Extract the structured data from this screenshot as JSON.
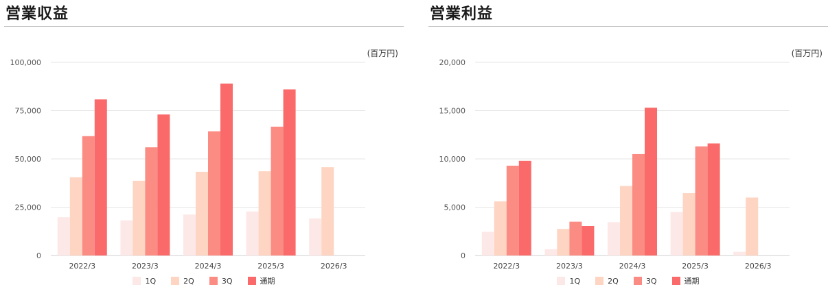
{
  "chart_data": [
    {
      "type": "bar",
      "title": "営業収益",
      "unit_label": "(百万円)",
      "categories": [
        "2022/3",
        "2023/3",
        "2024/3",
        "2025/3",
        "2026/3"
      ],
      "ylim": [
        0,
        100000
      ],
      "yticks": [
        "0",
        "25,000",
        "50,000",
        "75,000",
        "100,000"
      ],
      "ytick_values": [
        0,
        25000,
        50000,
        75000,
        100000
      ],
      "grid": true,
      "legend_position": "bottom",
      "series": [
        {
          "name": "1Q",
          "color": "#fde8e8",
          "values": [
            19800,
            18200,
            21200,
            22800,
            19200
          ]
        },
        {
          "name": "2Q",
          "color": "#fdd5c2",
          "values": [
            40500,
            38700,
            43300,
            43600,
            45700
          ]
        },
        {
          "name": "3Q",
          "color": "#fb8c84",
          "values": [
            61800,
            56000,
            64300,
            66700,
            null
          ]
        },
        {
          "name": "通期",
          "color": "#fb6a6a",
          "values": [
            80800,
            73000,
            89000,
            86000,
            null
          ]
        }
      ]
    },
    {
      "type": "bar",
      "title": "営業利益",
      "unit_label": "(百万円)",
      "categories": [
        "2022/3",
        "2023/3",
        "2024/3",
        "2025/3",
        "2026/3"
      ],
      "ylim": [
        0,
        20000
      ],
      "yticks": [
        "0",
        "5,000",
        "10,000",
        "15,000",
        "20,000"
      ],
      "ytick_values": [
        0,
        5000,
        10000,
        15000,
        20000
      ],
      "grid": true,
      "legend_position": "bottom",
      "series": [
        {
          "name": "1Q",
          "color": "#fde8e8",
          "values": [
            2450,
            650,
            3450,
            4500,
            380
          ]
        },
        {
          "name": "2Q",
          "color": "#fdd5c2",
          "values": [
            5600,
            2750,
            7200,
            6450,
            6000
          ]
        },
        {
          "name": "3Q",
          "color": "#fb8c84",
          "values": [
            9300,
            3500,
            10500,
            11300,
            null
          ]
        },
        {
          "name": "通期",
          "color": "#fb6a6a",
          "values": [
            9800,
            3050,
            15300,
            11600,
            null
          ]
        }
      ]
    }
  ]
}
